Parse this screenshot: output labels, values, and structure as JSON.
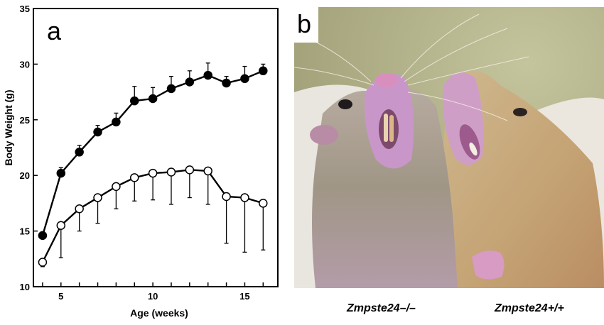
{
  "panel_a": {
    "label": "a",
    "chart_data": {
      "type": "line",
      "xlabel": "Age (weeks)",
      "ylabel": "Body Weight (g)",
      "xlim": [
        3.5,
        16.8
      ],
      "ylim": [
        10,
        35
      ],
      "x_ticks": [
        5,
        10,
        15
      ],
      "y_ticks": [
        10,
        15,
        20,
        25,
        30,
        35
      ],
      "grid": false,
      "series": [
        {
          "marker": "filled-circle",
          "x": [
            4,
            5,
            6,
            7,
            8,
            9,
            10,
            11,
            12,
            13,
            14,
            15,
            16
          ],
          "values": [
            14.6,
            20.2,
            22.1,
            23.9,
            24.8,
            26.7,
            26.9,
            27.8,
            28.4,
            29.0,
            28.3,
            28.7,
            29.4
          ],
          "error_plus": [
            0.0,
            0.5,
            0.6,
            0.6,
            0.8,
            1.3,
            1.0,
            1.1,
            1.0,
            1.1,
            0.6,
            1.1,
            0.6
          ]
        },
        {
          "marker": "open-circle",
          "x": [
            4,
            5,
            6,
            7,
            8,
            9,
            10,
            11,
            12,
            13,
            14,
            15,
            16
          ],
          "values": [
            12.2,
            15.5,
            17.0,
            18.0,
            19.0,
            19.8,
            20.2,
            20.3,
            20.5,
            20.4,
            18.1,
            18.0,
            17.5
          ],
          "error_minus": [
            0.4,
            2.9,
            2.0,
            2.3,
            2.0,
            2.1,
            2.4,
            2.9,
            2.5,
            3.0,
            4.2,
            4.9,
            4.2
          ]
        }
      ]
    }
  },
  "panel_b": {
    "label": "b",
    "caption_left": "Zmpste24–/–",
    "caption_right": "Zmpste24+/+",
    "colors": {
      "background": "#b3b389",
      "fur_gray": "#a49a8a",
      "fur_tan": "#c9ab7f",
      "skin_pink": "#c692c9"
    }
  }
}
